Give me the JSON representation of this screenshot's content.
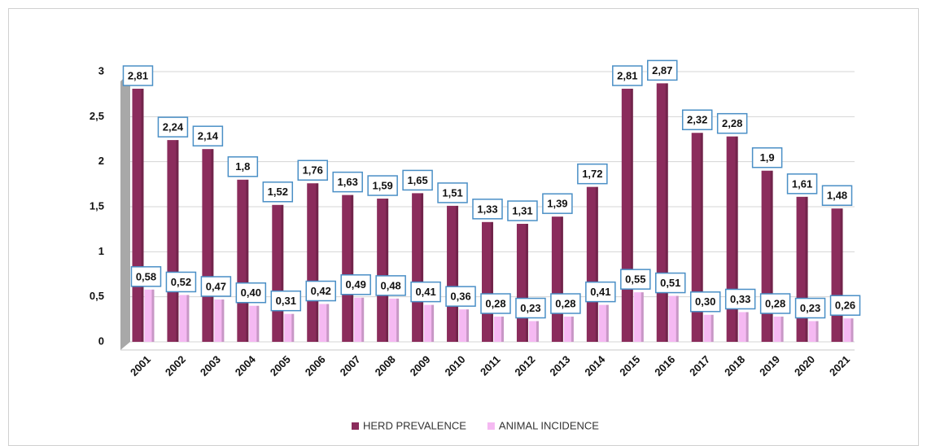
{
  "chart_data": {
    "type": "bar",
    "categories": [
      "2001",
      "2002",
      "2003",
      "2004",
      "2005",
      "2006",
      "2007",
      "2008",
      "2009",
      "2010",
      "2011",
      "2012",
      "2013",
      "2014",
      "2015",
      "2016",
      "2017",
      "2018",
      "2019",
      "2020",
      "2021"
    ],
    "series": [
      {
        "name": "HERD PREVALENCE",
        "color": "#8b2c5c",
        "values": [
          2.81,
          2.24,
          2.14,
          1.8,
          1.52,
          1.76,
          1.63,
          1.59,
          1.65,
          1.51,
          1.33,
          1.31,
          1.39,
          1.72,
          2.81,
          2.87,
          2.32,
          2.28,
          1.9,
          1.61,
          1.48
        ],
        "value_labels": [
          "2,81",
          "2,24",
          "2,14",
          "1,8",
          "1,52",
          "1,76",
          "1,63",
          "1,59",
          "1,65",
          "1,51",
          "1,33",
          "1,31",
          "1,39",
          "1,72",
          "2,81",
          "2,87",
          "2,32",
          "2,28",
          "1,9",
          "1,61",
          "1,48"
        ]
      },
      {
        "name": "ANIMAL INCIDENCE",
        "color": "#f5b9f2",
        "values": [
          0.58,
          0.52,
          0.47,
          0.4,
          0.31,
          0.42,
          0.49,
          0.48,
          0.41,
          0.36,
          0.28,
          0.23,
          0.28,
          0.41,
          0.55,
          0.51,
          0.3,
          0.33,
          0.28,
          0.23,
          0.26
        ],
        "value_labels": [
          "0,58",
          "0,52",
          "0,47",
          "0,40",
          "0,31",
          "0,42",
          "0,49",
          "0,48",
          "0,41",
          "0,36",
          "0,28",
          "0,23",
          "0,28",
          "0,41",
          "0,55",
          "0,51",
          "0,30",
          "0,33",
          "0,28",
          "0,23",
          "0,26"
        ]
      }
    ],
    "ylim": [
      0,
      3
    ],
    "yticks": [
      0,
      {
        "value": 0.5,
        "label": "0,5"
      },
      1,
      {
        "value": 1.5,
        "label": "1,5"
      },
      2,
      {
        "value": 2.5,
        "label": "2,5"
      },
      3
    ],
    "grid": true,
    "legend": "bottom"
  }
}
